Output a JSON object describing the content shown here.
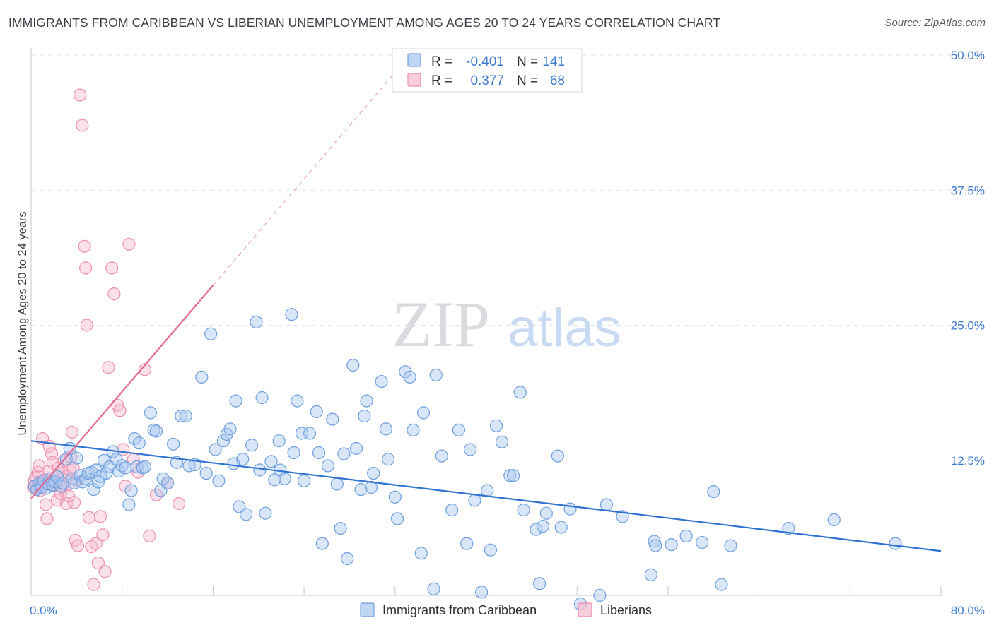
{
  "header": {
    "title": "IMMIGRANTS FROM CARIBBEAN VS LIBERIAN UNEMPLOYMENT AMONG AGES 20 TO 24 YEARS CORRELATION CHART",
    "source": "Source: ZipAtlas.com"
  },
  "watermark": {
    "zip": "ZIP",
    "atlas": "atlas"
  },
  "stats_box": {
    "rows": [
      {
        "r_label": "R =",
        "r_value": "-0.401",
        "n_label": "N =",
        "n_value": "141",
        "color": "#7aa7e8"
      },
      {
        "r_label": "R =",
        "r_value": "0.377",
        "n_label": "N =",
        "n_value": "68",
        "color": "#f08fb0"
      }
    ]
  },
  "legend": {
    "items": [
      {
        "label": "Immigrants from Caribbean",
        "color": "#7aa7e8"
      },
      {
        "label": "Liberians",
        "color": "#f08fb0"
      }
    ]
  },
  "colors": {
    "blue_fill": "#a9c7f0",
    "blue_stroke": "#6f9fe0",
    "blue_line": "#2f72d1",
    "pink_fill": "#f6bcd0",
    "pink_stroke": "#ee8eb0",
    "pink_line": "#e26b95",
    "tick_text": "#3d7bd3"
  },
  "chart_data": {
    "type": "scatter",
    "title": "IMMIGRANTS FROM CARIBBEAN VS LIBERIAN UNEMPLOYMENT AMONG AGES 20 TO 24 YEARS CORRELATION CHART",
    "xlabel": "",
    "ylabel": "Unemployment Among Ages 20 to 24 years",
    "xlim": [
      0,
      80
    ],
    "ylim": [
      0,
      50
    ],
    "x_tick_labels": [
      {
        "value": 0,
        "label": "0.0%"
      },
      {
        "value": 80,
        "label": "80.0%"
      }
    ],
    "y_tick_labels": [
      {
        "value": 12.5,
        "label": "12.5%"
      },
      {
        "value": 25,
        "label": "25.0%"
      },
      {
        "value": 37.5,
        "label": "37.5%"
      },
      {
        "value": 50,
        "label": "50.0%"
      }
    ],
    "x_minor_ticks": [
      0,
      8,
      16,
      24,
      32,
      40,
      48,
      56,
      64,
      72,
      80
    ],
    "grid": true,
    "legend_position": "bottom-center",
    "series": [
      {
        "name": "Immigrants from Caribbean",
        "trend": {
          "x": [
            0,
            80
          ],
          "y": [
            14.3,
            4.1
          ],
          "style": "solid"
        },
        "points": [
          [
            0.3,
            10.1
          ],
          [
            0.5,
            9.8
          ],
          [
            0.7,
            10.4
          ],
          [
            0.9,
            10.0
          ],
          [
            1.1,
            10.6
          ],
          [
            1.3,
            9.9
          ],
          [
            1.5,
            10.3
          ],
          [
            1.7,
            10.8
          ],
          [
            1.9,
            10.2
          ],
          [
            2.1,
            10.5
          ],
          [
            2.3,
            11.0
          ],
          [
            2.6,
            10.1
          ],
          [
            2.8,
            10.4
          ],
          [
            3.1,
            12.6
          ],
          [
            3.4,
            13.6
          ],
          [
            3.6,
            10.8
          ],
          [
            3.8,
            10.4
          ],
          [
            4.0,
            12.7
          ],
          [
            4.3,
            11.1
          ],
          [
            4.5,
            10.5
          ],
          [
            4.8,
            10.8
          ],
          [
            5.0,
            11.3
          ],
          [
            5.3,
            11.4
          ],
          [
            5.5,
            9.8
          ],
          [
            5.7,
            11.6
          ],
          [
            5.9,
            10.5
          ],
          [
            6.1,
            11.0
          ],
          [
            6.4,
            12.5
          ],
          [
            6.6,
            11.3
          ],
          [
            6.9,
            11.9
          ],
          [
            7.2,
            13.3
          ],
          [
            7.5,
            12.6
          ],
          [
            7.7,
            11.5
          ],
          [
            8.0,
            12.0
          ],
          [
            8.3,
            11.8
          ],
          [
            8.6,
            8.4
          ],
          [
            8.8,
            9.7
          ],
          [
            9.1,
            14.5
          ],
          [
            9.3,
            11.9
          ],
          [
            9.5,
            14.1
          ],
          [
            9.8,
            11.8
          ],
          [
            10.0,
            11.9
          ],
          [
            10.5,
            16.9
          ],
          [
            10.8,
            15.3
          ],
          [
            11.0,
            15.2
          ],
          [
            11.4,
            9.7
          ],
          [
            11.6,
            10.8
          ],
          [
            12.0,
            10.4
          ],
          [
            12.5,
            14.0
          ],
          [
            12.8,
            12.3
          ],
          [
            13.2,
            16.6
          ],
          [
            13.6,
            16.6
          ],
          [
            13.9,
            12.0
          ],
          [
            14.4,
            12.1
          ],
          [
            15.0,
            20.2
          ],
          [
            15.4,
            11.3
          ],
          [
            15.8,
            24.2
          ],
          [
            16.2,
            13.5
          ],
          [
            16.5,
            10.6
          ],
          [
            16.9,
            14.3
          ],
          [
            17.2,
            14.9
          ],
          [
            17.5,
            15.4
          ],
          [
            17.8,
            12.2
          ],
          [
            18.0,
            18.0
          ],
          [
            18.3,
            8.2
          ],
          [
            18.6,
            12.6
          ],
          [
            18.9,
            7.5
          ],
          [
            19.4,
            13.9
          ],
          [
            19.8,
            25.3
          ],
          [
            20.1,
            11.6
          ],
          [
            20.3,
            18.3
          ],
          [
            20.6,
            7.6
          ],
          [
            21.1,
            12.4
          ],
          [
            21.4,
            10.7
          ],
          [
            21.8,
            14.3
          ],
          [
            21.9,
            11.6
          ],
          [
            22.3,
            10.8
          ],
          [
            22.9,
            26.0
          ],
          [
            23.1,
            13.2
          ],
          [
            23.4,
            18.0
          ],
          [
            23.8,
            15.0
          ],
          [
            24.0,
            10.6
          ],
          [
            24.5,
            15.0
          ],
          [
            25.1,
            17.0
          ],
          [
            25.3,
            13.2
          ],
          [
            25.6,
            4.8
          ],
          [
            26.1,
            12.0
          ],
          [
            26.5,
            16.3
          ],
          [
            26.9,
            10.3
          ],
          [
            27.2,
            6.2
          ],
          [
            27.5,
            13.1
          ],
          [
            27.8,
            3.4
          ],
          [
            28.3,
            21.3
          ],
          [
            28.6,
            13.6
          ],
          [
            29.0,
            9.8
          ],
          [
            29.3,
            16.6
          ],
          [
            29.5,
            18.0
          ],
          [
            29.9,
            10.0
          ],
          [
            30.1,
            11.3
          ],
          [
            30.8,
            19.8
          ],
          [
            31.2,
            15.4
          ],
          [
            31.4,
            12.6
          ],
          [
            32.0,
            9.1
          ],
          [
            32.2,
            7.1
          ],
          [
            32.9,
            20.7
          ],
          [
            33.3,
            20.2
          ],
          [
            33.6,
            15.3
          ],
          [
            34.3,
            3.9
          ],
          [
            34.5,
            16.9
          ],
          [
            35.4,
            0.6
          ],
          [
            35.6,
            20.4
          ],
          [
            36.1,
            12.9
          ],
          [
            37.0,
            7.9
          ],
          [
            37.6,
            15.3
          ],
          [
            38.3,
            4.8
          ],
          [
            38.6,
            13.5
          ],
          [
            39.0,
            8.8
          ],
          [
            39.6,
            0.3
          ],
          [
            40.1,
            9.7
          ],
          [
            40.4,
            4.2
          ],
          [
            40.9,
            15.7
          ],
          [
            41.4,
            14.2
          ],
          [
            42.1,
            11.1
          ],
          [
            42.4,
            11.1
          ],
          [
            43.0,
            18.8
          ],
          [
            43.3,
            7.9
          ],
          [
            44.4,
            6.1
          ],
          [
            44.7,
            1.1
          ],
          [
            45.0,
            6.4
          ],
          [
            45.3,
            7.6
          ],
          [
            46.3,
            12.9
          ],
          [
            46.6,
            6.3
          ],
          [
            47.4,
            8.0
          ],
          [
            48.3,
            -0.8
          ],
          [
            50.0,
            0.0
          ],
          [
            50.6,
            8.4
          ],
          [
            52.0,
            7.3
          ],
          [
            54.5,
            1.9
          ],
          [
            54.8,
            5.0
          ],
          [
            54.9,
            4.6
          ],
          [
            56.3,
            4.7
          ],
          [
            57.6,
            5.5
          ],
          [
            59.0,
            4.9
          ],
          [
            60.0,
            9.6
          ],
          [
            60.7,
            1.0
          ],
          [
            61.5,
            4.6
          ],
          [
            66.6,
            6.2
          ],
          [
            70.6,
            7.0
          ],
          [
            76.0,
            4.8
          ]
        ]
      },
      {
        "name": "Liberians",
        "trend": {
          "x": [
            0,
            16
          ],
          "y": [
            9.0,
            28.7
          ],
          "style": "solid",
          "extended_to": [
            32,
            48.4
          ],
          "extended_style": "dashed"
        },
        "points": [
          [
            0.2,
            10.0
          ],
          [
            0.3,
            10.6
          ],
          [
            0.4,
            10.9
          ],
          [
            0.5,
            9.9
          ],
          [
            0.6,
            11.4
          ],
          [
            0.7,
            12.0
          ],
          [
            0.8,
            9.7
          ],
          [
            0.9,
            10.5
          ],
          [
            1.0,
            14.5
          ],
          [
            1.1,
            10.3
          ],
          [
            1.2,
            10.7
          ],
          [
            1.3,
            8.4
          ],
          [
            1.4,
            7.1
          ],
          [
            1.5,
            11.5
          ],
          [
            1.6,
            13.8
          ],
          [
            1.7,
            10.8
          ],
          [
            1.8,
            13.1
          ],
          [
            1.9,
            12.3
          ],
          [
            2.0,
            10.2
          ],
          [
            2.1,
            10.2
          ],
          [
            2.2,
            10.5
          ],
          [
            2.3,
            8.8
          ],
          [
            2.4,
            11.8
          ],
          [
            2.5,
            10.6
          ],
          [
            2.6,
            9.4
          ],
          [
            2.7,
            10.0
          ],
          [
            2.8,
            11.3
          ],
          [
            2.9,
            12.5
          ],
          [
            3.0,
            10.1
          ],
          [
            3.1,
            8.5
          ],
          [
            3.2,
            11.0
          ],
          [
            3.3,
            9.2
          ],
          [
            3.4,
            11.6
          ],
          [
            3.5,
            12.8
          ],
          [
            3.6,
            15.1
          ],
          [
            3.7,
            11.8
          ],
          [
            3.8,
            8.6
          ],
          [
            3.9,
            5.1
          ],
          [
            4.0,
            10.6
          ],
          [
            4.1,
            4.6
          ],
          [
            4.3,
            46.3
          ],
          [
            4.5,
            43.5
          ],
          [
            4.7,
            32.3
          ],
          [
            4.8,
            30.3
          ],
          [
            4.9,
            25.0
          ],
          [
            5.1,
            7.2
          ],
          [
            5.3,
            4.5
          ],
          [
            5.5,
            1.0
          ],
          [
            5.7,
            4.8
          ],
          [
            5.9,
            3.0
          ],
          [
            6.1,
            7.3
          ],
          [
            6.3,
            5.6
          ],
          [
            6.5,
            2.2
          ],
          [
            6.8,
            21.1
          ],
          [
            7.1,
            30.3
          ],
          [
            7.3,
            27.9
          ],
          [
            7.6,
            17.6
          ],
          [
            7.8,
            17.1
          ],
          [
            8.1,
            13.5
          ],
          [
            8.3,
            10.1
          ],
          [
            8.6,
            32.5
          ],
          [
            9.0,
            12.6
          ],
          [
            9.4,
            11.4
          ],
          [
            10.0,
            20.9
          ],
          [
            10.4,
            5.5
          ],
          [
            11.0,
            9.3
          ],
          [
            12.0,
            10.4
          ],
          [
            13.0,
            8.5
          ]
        ]
      }
    ]
  }
}
